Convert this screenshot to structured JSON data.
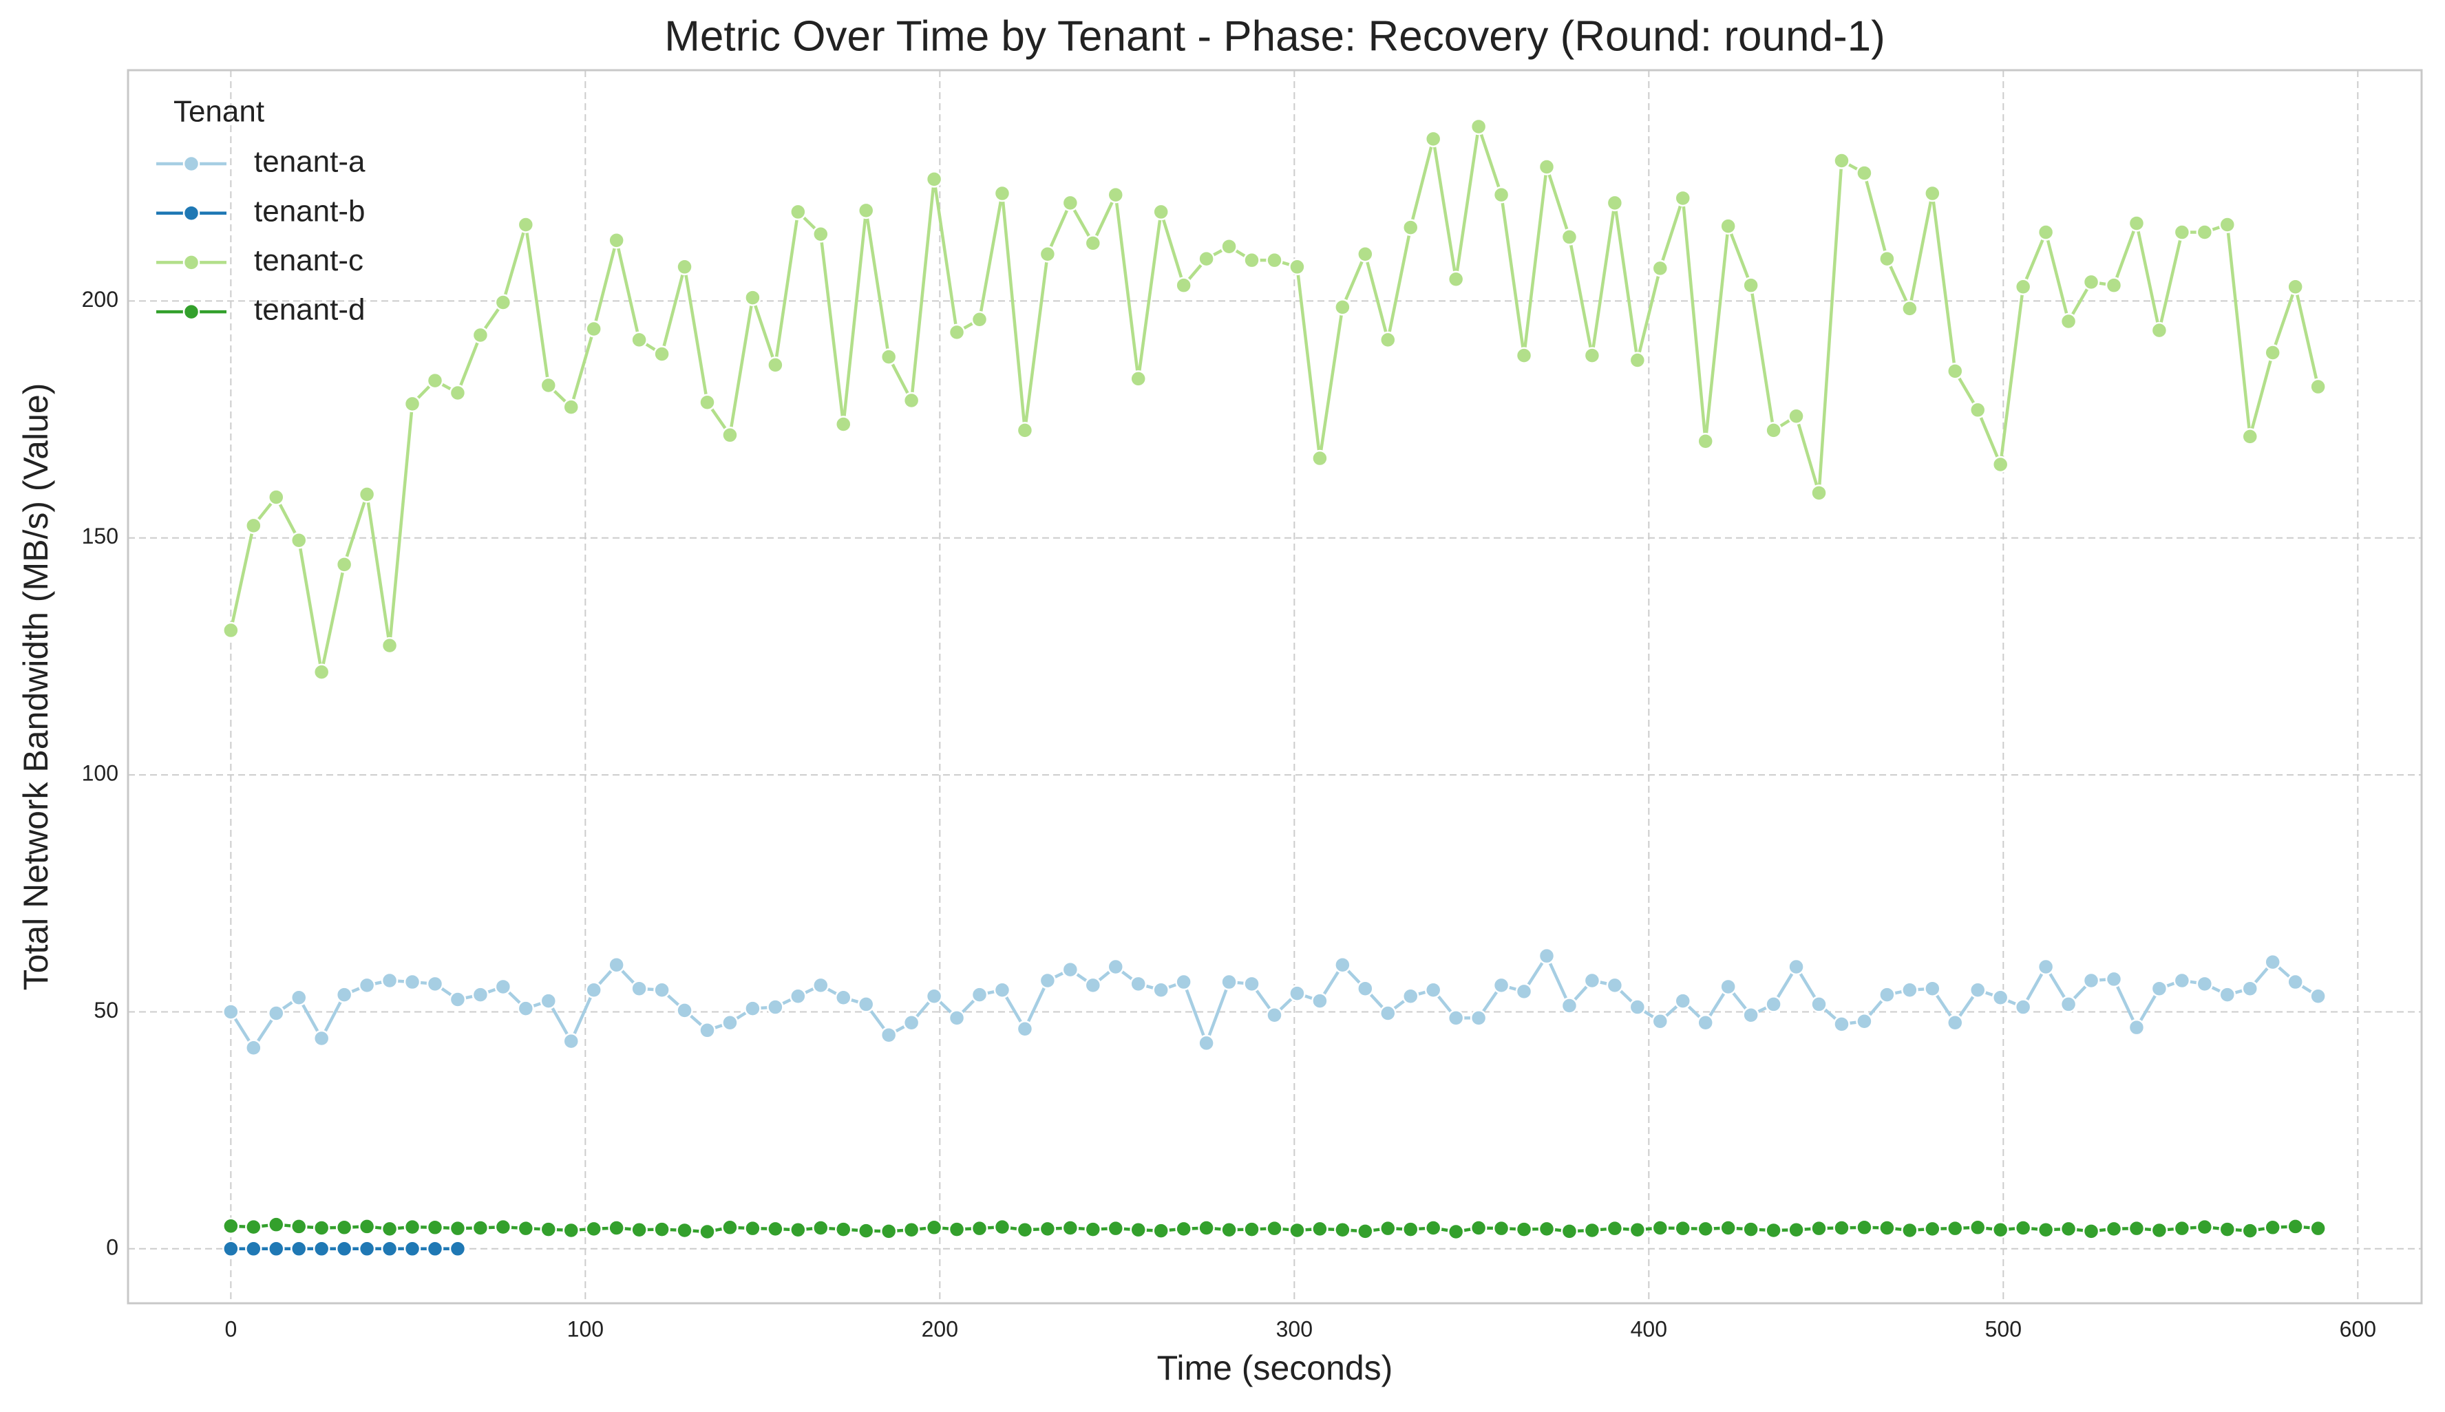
{
  "chart_data": {
    "type": "line",
    "title": "Metric Over Time by Tenant - Phase: Recovery (Round: round-1)",
    "xlabel": "Time (seconds)",
    "ylabel": "Total Network Bandwidth (MB/s) (Value)",
    "legend_title": "Tenant",
    "legend": "upper left",
    "grid": true,
    "xlim": [
      -29,
      618
    ],
    "ylim": [
      -11.5,
      248.7
    ],
    "xticks": [
      0,
      100,
      200,
      300,
      400,
      500,
      600
    ],
    "yticks": [
      0,
      50,
      100,
      150,
      200
    ],
    "x": [
      0,
      6.4,
      12.8,
      19.2,
      25.6,
      32,
      38.4,
      44.8,
      51.2,
      57.6,
      64,
      70.4,
      76.8,
      83.2,
      89.6,
      96,
      102.4,
      108.8,
      115.2,
      121.6,
      128,
      134.4,
      140.8,
      147.2,
      153.6,
      160,
      166.4,
      172.8,
      179.2,
      185.6,
      192,
      198.4,
      204.8,
      211.2,
      217.6,
      224,
      230.4,
      236.8,
      243.2,
      249.6,
      256,
      262.4,
      268.8,
      275.2,
      281.6,
      288,
      294.4,
      300.8,
      307.2,
      313.6,
      320,
      326.4,
      332.8,
      339.2,
      345.6,
      352,
      358.4,
      364.8,
      371.2,
      377.6,
      384,
      390.4,
      396.8,
      403.2,
      409.6,
      416,
      422.4,
      428.8,
      435.2,
      441.6,
      448,
      454.4,
      460.8,
      467.2,
      473.6,
      480,
      486.4,
      492.8,
      499.2,
      505.6,
      512,
      518.4,
      524.8,
      531.2,
      537.6,
      544,
      550.4,
      556.8,
      563.2,
      569.6,
      576,
      582.4,
      588.8
    ],
    "series": [
      {
        "name": "tenant-a",
        "color": "#a6cee3",
        "values": [
          50.0,
          42.4,
          49.7,
          53.0,
          44.4,
          53.6,
          55.6,
          56.6,
          56.3,
          55.9,
          52.6,
          53.6,
          55.3,
          50.7,
          52.3,
          43.8,
          54.6,
          59.9,
          54.9,
          54.6,
          50.3,
          46.1,
          47.7,
          50.7,
          51.0,
          53.3,
          55.6,
          53.0,
          51.6,
          45.1,
          47.7,
          53.3,
          48.7,
          53.6,
          54.6,
          46.4,
          56.6,
          58.9,
          55.6,
          59.5,
          55.9,
          54.6,
          56.3,
          43.4,
          56.3,
          55.9,
          49.3,
          53.9,
          52.3,
          59.9,
          54.9,
          49.7,
          53.3,
          54.6,
          48.7,
          48.7,
          55.6,
          54.3,
          61.8,
          51.3,
          56.6,
          55.6,
          51.0,
          48.0,
          52.3,
          47.7,
          55.3,
          49.3,
          51.6,
          59.5,
          51.6,
          47.4,
          48.0,
          53.6,
          54.6,
          54.9,
          47.7,
          54.6,
          53.0,
          51.0,
          59.5,
          51.6,
          56.6,
          56.9,
          46.7,
          54.9,
          56.6,
          55.9,
          53.6,
          54.9,
          60.5,
          56.3,
          53.3
        ]
      },
      {
        "name": "tenant-b",
        "color": "#1f78b4",
        "values": [
          0,
          0,
          0,
          0,
          0,
          0,
          0,
          0,
          0,
          0,
          0,
          null,
          null,
          null,
          null,
          null,
          null,
          null,
          null,
          null,
          null,
          null,
          null,
          null,
          null,
          null,
          null,
          null,
          null,
          null,
          null,
          null,
          null,
          null,
          null,
          null,
          null,
          null,
          null,
          null,
          null,
          null,
          null,
          null,
          null,
          null,
          null,
          null,
          null,
          null,
          null,
          null,
          null,
          null,
          null,
          null,
          null,
          null,
          null,
          null,
          null,
          null,
          null,
          null,
          null,
          null,
          null,
          null,
          null,
          null,
          null,
          null,
          null,
          null,
          null,
          null,
          null,
          null,
          null,
          null,
          null,
          null,
          null,
          null,
          null,
          null,
          null,
          null,
          null,
          null,
          null,
          null,
          null
        ]
      },
      {
        "name": "tenant-c",
        "color": "#b2df8a",
        "values": [
          130.5,
          152.6,
          158.6,
          149.5,
          121.7,
          144.4,
          159.2,
          127.3,
          178.3,
          183.2,
          180.6,
          192.8,
          199.7,
          216.1,
          182.2,
          177.6,
          194.1,
          212.8,
          191.8,
          188.8,
          207.2,
          178.6,
          171.7,
          200.7,
          186.5,
          218.8,
          214.1,
          174.0,
          219.1,
          188.2,
          179.0,
          225.7,
          193.4,
          196.1,
          222.7,
          172.7,
          209.9,
          220.7,
          212.2,
          222.4,
          183.6,
          218.8,
          203.3,
          208.9,
          211.5,
          208.6,
          208.6,
          207.2,
          166.8,
          198.7,
          209.9,
          191.8,
          215.5,
          234.2,
          204.6,
          236.8,
          222.4,
          188.5,
          228.3,
          213.5,
          188.5,
          220.7,
          187.5,
          206.9,
          221.7,
          170.4,
          215.8,
          203.3,
          172.7,
          175.7,
          159.5,
          229.6,
          227.0,
          208.9,
          198.4,
          222.7,
          185.2,
          177.0,
          165.5,
          203.0,
          214.5,
          195.7,
          204.0,
          203.3,
          216.4,
          193.8,
          214.5,
          214.5,
          216.1,
          171.4,
          189.1,
          203.0,
          181.9
        ]
      },
      {
        "name": "tenant-d",
        "color": "#33a02c",
        "values": [
          4.8,
          4.6,
          5.1,
          4.7,
          4.4,
          4.5,
          4.7,
          4.2,
          4.6,
          4.5,
          4.3,
          4.4,
          4.6,
          4.3,
          4.1,
          3.9,
          4.2,
          4.4,
          4.0,
          4.1,
          3.9,
          3.6,
          4.5,
          4.3,
          4.2,
          4.0,
          4.4,
          4.1,
          3.8,
          3.7,
          4.0,
          4.5,
          4.1,
          4.3,
          4.6,
          4.0,
          4.2,
          4.4,
          4.1,
          4.3,
          4.0,
          3.8,
          4.2,
          4.4,
          4.0,
          4.1,
          4.3,
          3.9,
          4.2,
          4.0,
          3.7,
          4.3,
          4.1,
          4.4,
          3.6,
          4.4,
          4.3,
          4.1,
          4.2,
          3.7,
          3.9,
          4.3,
          4.0,
          4.4,
          4.3,
          4.2,
          4.4,
          4.1,
          3.9,
          4.0,
          4.3,
          4.4,
          4.5,
          4.4,
          3.9,
          4.2,
          4.3,
          4.5,
          4.0,
          4.4,
          4.0,
          4.2,
          3.7,
          4.2,
          4.3,
          3.9,
          4.3,
          4.6,
          4.1,
          3.8,
          4.5,
          4.7,
          4.3
        ]
      }
    ]
  }
}
